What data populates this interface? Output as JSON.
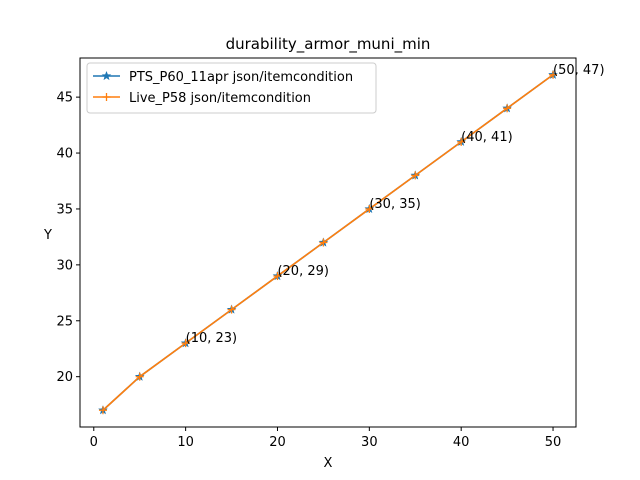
{
  "chart_data": {
    "type": "line",
    "title": "durability_armor_muni_min",
    "xlabel": "X",
    "ylabel": "Y",
    "xlim": [
      -1.5,
      52.5
    ],
    "ylim": [
      15.5,
      48.5
    ],
    "xticks": [
      0,
      10,
      20,
      30,
      40,
      50
    ],
    "yticks": [
      20,
      25,
      30,
      35,
      40,
      45
    ],
    "grid": false,
    "legend_position": "top-left",
    "series": [
      {
        "name": "PTS_P60_11apr json/itemcondition",
        "color": "#1f77b4",
        "marker": "star",
        "x": [
          1,
          5,
          10,
          15,
          20,
          25,
          30,
          35,
          40,
          45,
          50
        ],
        "y": [
          17,
          20,
          23,
          26,
          29,
          32,
          35,
          38,
          41,
          44,
          47
        ]
      },
      {
        "name": "Live_P58 json/itemcondition",
        "color": "#ff7f0e",
        "marker": "plus",
        "x": [
          1,
          5,
          10,
          15,
          20,
          25,
          30,
          35,
          40,
          45,
          50
        ],
        "y": [
          17,
          20,
          23,
          26,
          29,
          32,
          35,
          38,
          41,
          44,
          47
        ]
      }
    ],
    "annotations": [
      {
        "x": 10,
        "y": 23,
        "text": "(10, 23)"
      },
      {
        "x": 20,
        "y": 29,
        "text": "(20, 29)"
      },
      {
        "x": 30,
        "y": 35,
        "text": "(30, 35)"
      },
      {
        "x": 40,
        "y": 41,
        "text": "(40, 41)"
      },
      {
        "x": 50,
        "y": 47,
        "text": "(50, 47)"
      }
    ]
  }
}
